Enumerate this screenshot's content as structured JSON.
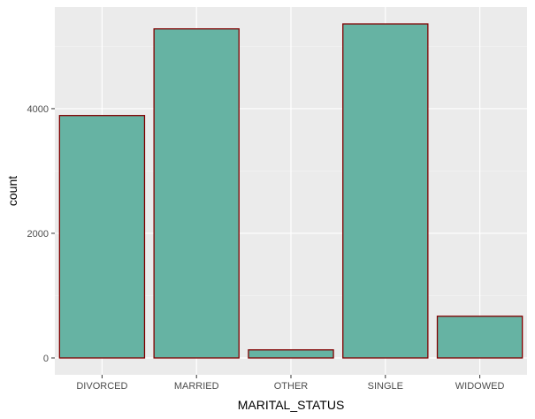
{
  "chart_data": {
    "type": "bar",
    "xlabel": "MARITAL_STATUS",
    "ylabel": "count",
    "categories": [
      "DIVORCED",
      "MARRIED",
      "OTHER",
      "SINGLE",
      "WIDOWED"
    ],
    "values": [
      3890,
      5280,
      130,
      5360,
      670
    ],
    "ylim": [
      -270,
      5630
    ],
    "y_ticks": [
      0,
      2000,
      4000
    ],
    "y_tick_labels": [
      "0",
      "2000",
      "4000"
    ],
    "grid": true,
    "colors": {
      "panel_background": "#ebebeb",
      "grid_major": "#ffffff",
      "grid_minor": "#f5f5f5",
      "bar_fill": "#66b3a3",
      "bar_outline": "#800000",
      "tick_mark": "#333333"
    }
  }
}
